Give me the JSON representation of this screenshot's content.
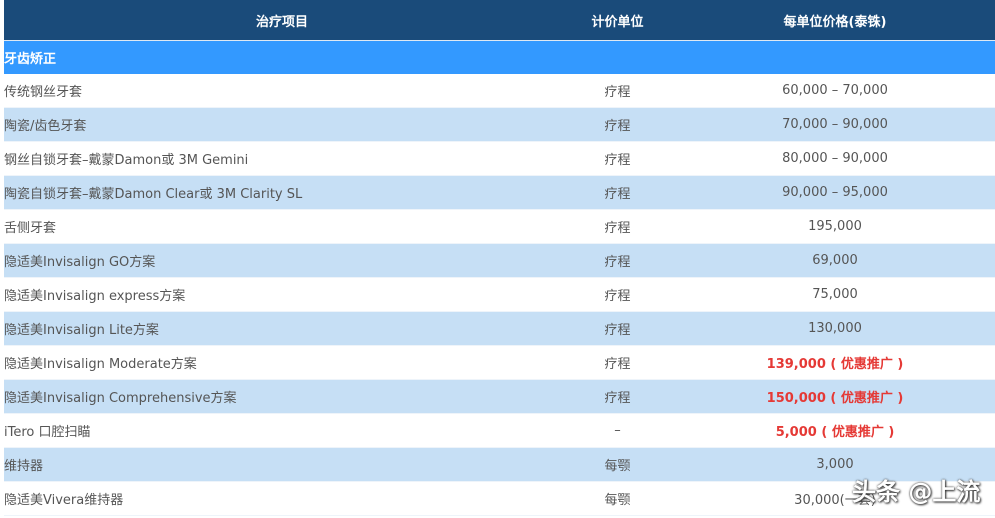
{
  "header": {
    "col1": "治疗项目",
    "col2": "计价单位",
    "col3": "每单位价格(泰铢)"
  },
  "section": "牙齿矫正",
  "rows": [
    {
      "item": "传统钢丝牙套",
      "unit": "疗程",
      "price": "60,000 – 70,000",
      "promo": false
    },
    {
      "item": "陶瓷/齿色牙套",
      "unit": "疗程",
      "price": "70,000 – 90,000",
      "promo": false
    },
    {
      "item": "钢丝自锁牙套–戴蒙Damon或 3M Gemini",
      "unit": "疗程",
      "price": "80,000 – 90,000",
      "promo": false
    },
    {
      "item": "陶瓷自锁牙套–戴蒙Damon Clear或 3M Clarity SL",
      "unit": "疗程",
      "price": "90,000 – 95,000",
      "promo": false
    },
    {
      "item": "舌侧牙套",
      "unit": "疗程",
      "price": "195,000",
      "promo": false
    },
    {
      "item": "隐适美Invisalign GO方案",
      "unit": "疗程",
      "price": "69,000",
      "promo": false
    },
    {
      "item": "隐适美Invisalign express方案",
      "unit": "疗程",
      "price": "75,000",
      "promo": false
    },
    {
      "item": "隐适美Invisalign Lite方案",
      "unit": "疗程",
      "price": "130,000",
      "promo": false
    },
    {
      "item": "隐适美Invisalign Moderate方案",
      "unit": "疗程",
      "price": "139,000 ( 优惠推广 )",
      "promo": true
    },
    {
      "item": "隐适美Invisalign Comprehensive方案",
      "unit": "疗程",
      "price": "150,000 ( 优惠推广 )",
      "promo": true
    },
    {
      "item": "iTero 口腔扫瞄",
      "unit": "–",
      "price": "5,000 ( 优惠推广 )",
      "promo": true
    },
    {
      "item": "维持器",
      "unit": "每颚",
      "price": "3,000",
      "promo": false
    },
    {
      "item": "隐适美Vivera维持器",
      "unit": "每颚",
      "price": "30,000(一套)",
      "promo": false
    }
  ],
  "watermark": "头条 @上流",
  "colors": {
    "header": "#1a4b7a",
    "section": "#3399ff",
    "stripe": "#c6dff5",
    "promo": "#e53935"
  }
}
